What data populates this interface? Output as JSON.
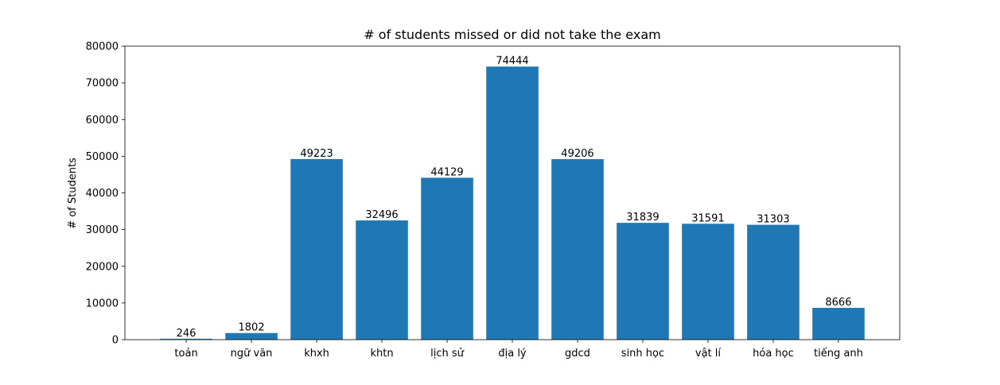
{
  "chart_data": {
    "type": "bar",
    "title": "# of students missed or did not take the exam",
    "xlabel": "",
    "ylabel": "# of Students",
    "categories": [
      "toán",
      "ngữ văn",
      "khxh",
      "khtn",
      "lịch sử",
      "địa lý",
      "gdcd",
      "sinh học",
      "vật lí",
      "hóa học",
      "tiếng anh"
    ],
    "values": [
      246,
      1802,
      49223,
      32496,
      44129,
      74444,
      49206,
      31839,
      31591,
      31303,
      8666
    ],
    "ylim": [
      0,
      80000
    ],
    "yticks": [
      0,
      10000,
      20000,
      30000,
      40000,
      50000,
      60000,
      70000,
      80000
    ],
    "bar_color": "#1f77b4",
    "grid": false,
    "legend": "none",
    "show_data_labels": true
  }
}
